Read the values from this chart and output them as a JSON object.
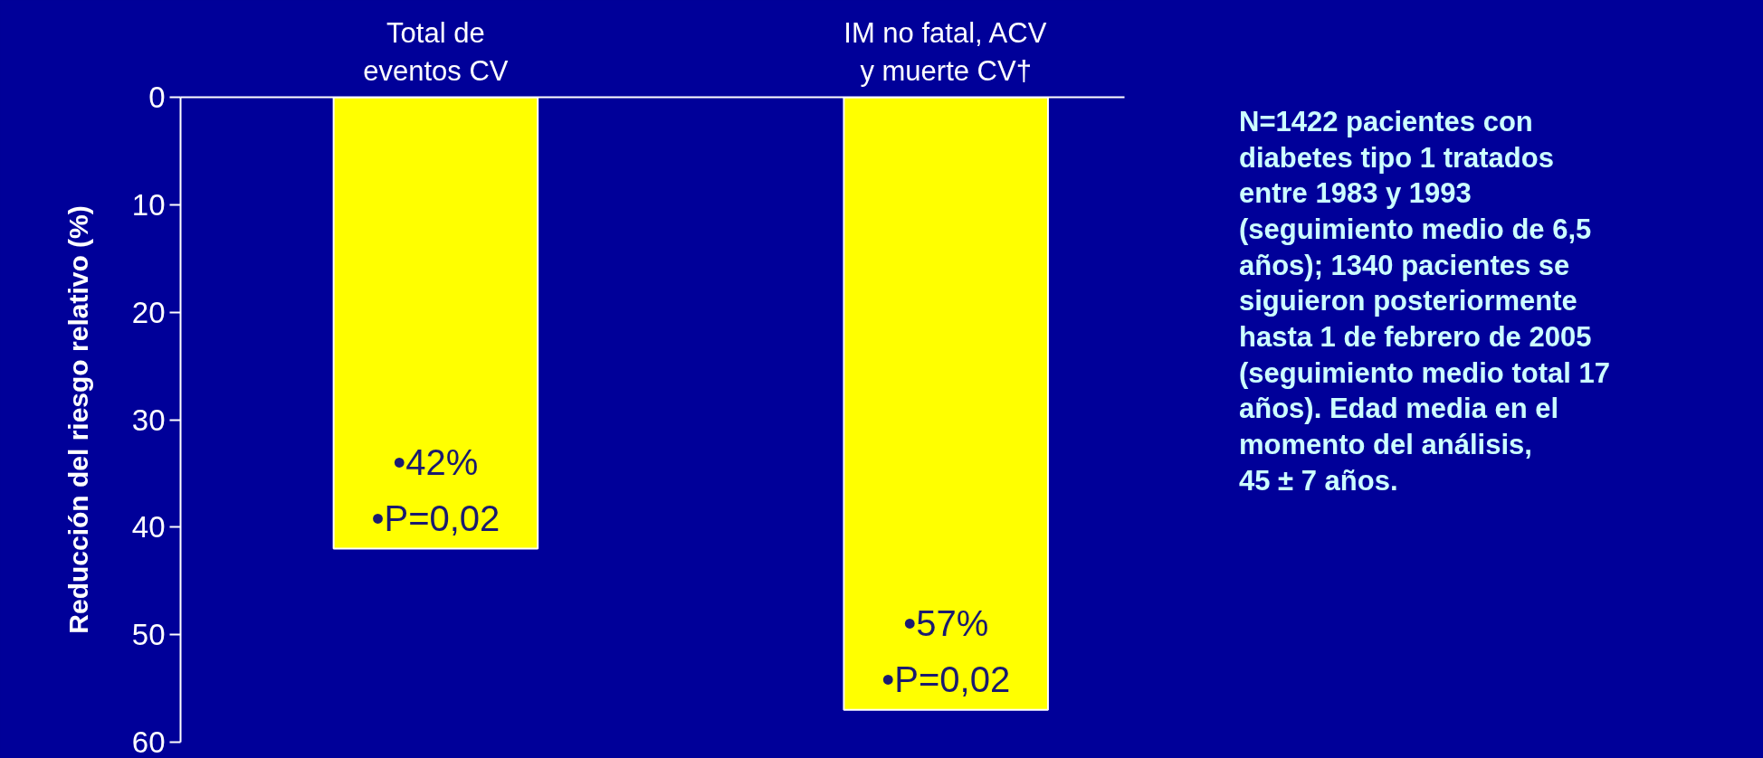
{
  "chart_data": {
    "type": "bar",
    "ylabel": "Reducción del riesgo relativo (%)",
    "categories": [
      "Total de\neventos CV",
      "IM no fatal, ACV\ny muerte CV†"
    ],
    "values": [
      42,
      57
    ],
    "color": "#ffff00",
    "value_labels": [
      "•42%\n•P=0,02",
      "•57%\n•P=0,02"
    ],
    "ylim": [
      60,
      0
    ],
    "yticks": [
      0,
      10,
      20,
      30,
      40,
      50,
      60
    ],
    "grid": false,
    "annotations": [
      "N=1422 pacientes con\ndiabetes tipo 1 tratados\nentre 1983 y 1993\n(seguimiento medio de 6,5\naños); 1340 pacientes se\nsiguieron posteriormente\nhasta 1 de febrero de 2005\n(seguimiento medio total 17\naños). Edad media en el\nmomento del análisis,\n45 ± 7 años."
    ]
  }
}
